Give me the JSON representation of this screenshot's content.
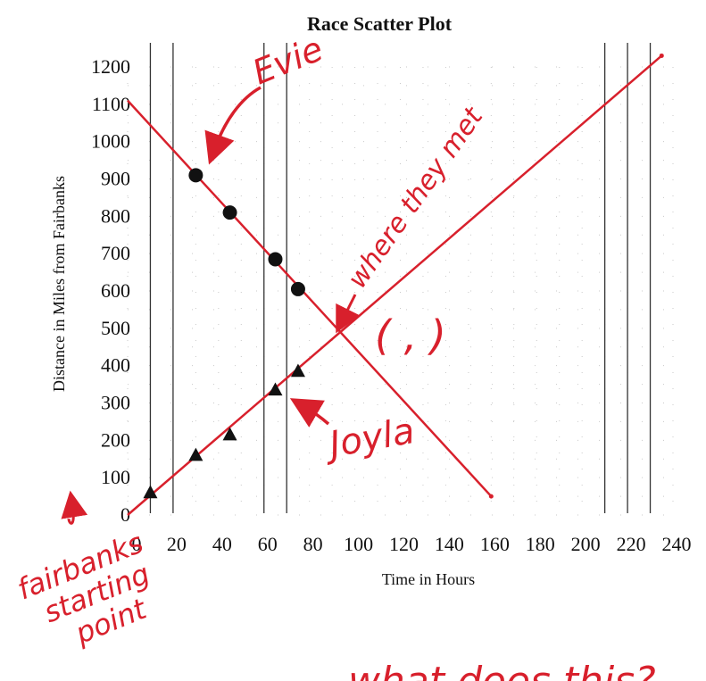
{
  "chart_data": {
    "type": "scatter",
    "title": "Race Scatter Plot",
    "xlabel": "Time in Hours",
    "ylabel": "Distance in Miles from Fairbanks",
    "xlim": [
      0,
      240
    ],
    "ylim": [
      0,
      1200
    ],
    "x_ticks": [
      "0",
      "20",
      "40",
      "60",
      "80",
      "100",
      "120",
      "140",
      "160",
      "180",
      "200",
      "220",
      "240"
    ],
    "y_ticks": [
      "0",
      "100",
      "200",
      "300",
      "400",
      "500",
      "600",
      "700",
      "800",
      "900",
      "1000",
      "1100",
      "1200"
    ],
    "grid": true,
    "series": [
      {
        "marker": "circle",
        "color": "#111111",
        "points": [
          {
            "x": 30,
            "y": 910
          },
          {
            "x": 45,
            "y": 810
          },
          {
            "x": 65,
            "y": 685
          },
          {
            "x": 75,
            "y": 605
          }
        ]
      },
      {
        "marker": "triangle",
        "color": "#111111",
        "points": [
          {
            "x": 10,
            "y": 60
          },
          {
            "x": 30,
            "y": 160
          },
          {
            "x": 45,
            "y": 215
          },
          {
            "x": 65,
            "y": 335
          },
          {
            "x": 75,
            "y": 385
          }
        ]
      }
    ],
    "trend_lines": [
      {
        "color": "#d8202c",
        "from": {
          "x": 0,
          "y": 1110
        },
        "to": {
          "x": 160,
          "y": 50
        }
      },
      {
        "color": "#d8202c",
        "from": {
          "x": 0,
          "y": 0
        },
        "to": {
          "x": 235,
          "y": 1230
        }
      }
    ],
    "vertical_lines_x": [
      10,
      20,
      60,
      70,
      210,
      220,
      230
    ],
    "annotations": {
      "evie": "Evie",
      "when_they_met": "where they met",
      "joyla": "Joyla",
      "coordinate_blank": "(  ,  )",
      "fairbanks": [
        "fairbanks",
        "starting",
        "point"
      ],
      "bottom_note": "what does this?"
    }
  }
}
